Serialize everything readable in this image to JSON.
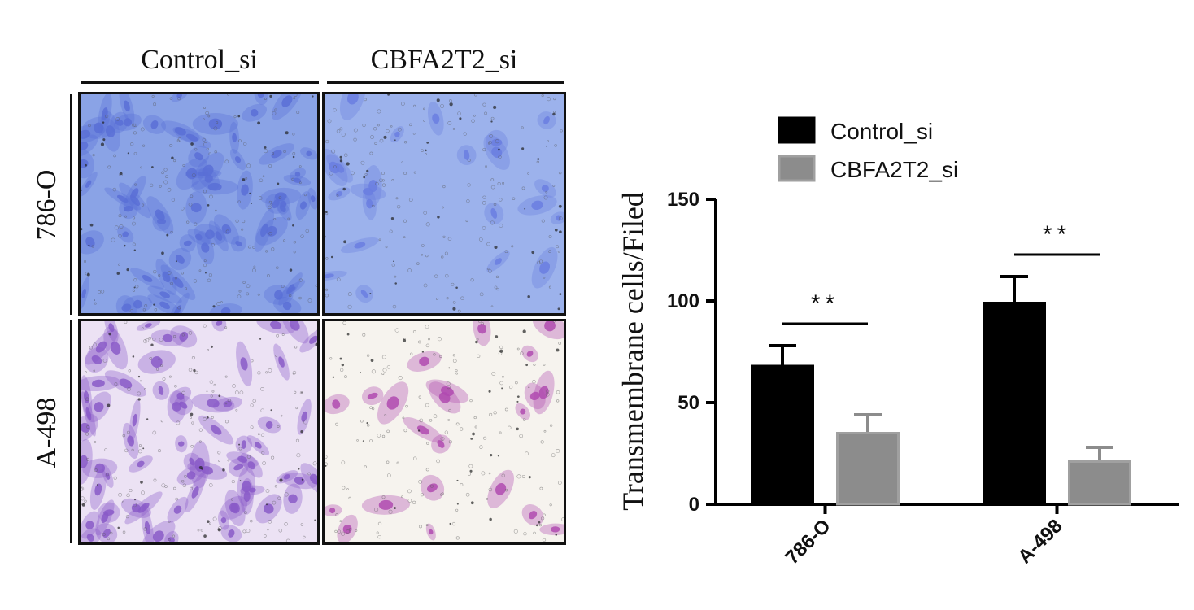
{
  "figure": {
    "column_headers": [
      "Control_si",
      "CBFA2T2_si"
    ],
    "row_labels": [
      "786-O",
      "A-498"
    ],
    "panels": [
      {
        "row": "786-O",
        "column": "Control_si",
        "stain": "#8aa3e6",
        "cell_color": "#5a6fd6",
        "density": "high"
      },
      {
        "row": "786-O",
        "column": "CBFA2T2_si",
        "stain": "#9cb2ec",
        "cell_color": "#6a7ee0",
        "density": "low"
      },
      {
        "row": "A-498",
        "column": "Control_si",
        "stain": "#ece2f4",
        "cell_color": "#8a5ac8",
        "density": "high"
      },
      {
        "row": "A-498",
        "column": "CBFA2T2_si",
        "stain": "#f6f3ee",
        "cell_color": "#b04ab0",
        "density": "low"
      }
    ]
  },
  "chart_data": {
    "type": "bar",
    "categories": [
      "786-O",
      "A-498"
    ],
    "series": [
      {
        "name": "Control_si",
        "values": [
          68,
          99
        ],
        "errors": [
          10,
          13
        ],
        "color": "#000000"
      },
      {
        "name": "CBFA2T2_si",
        "values": [
          35,
          21
        ],
        "errors": [
          9,
          7
        ],
        "color": "#8c8c8c"
      }
    ],
    "title": "",
    "xlabel": "",
    "ylabel": "Transmembrane cells/Filed",
    "ylim": [
      0,
      150
    ],
    "yticks": [
      0,
      50,
      100,
      150
    ],
    "legend_position": "top",
    "grid": false,
    "significance": [
      {
        "category": "786-O",
        "label": "**"
      },
      {
        "category": "A-498",
        "label": "**"
      }
    ]
  }
}
